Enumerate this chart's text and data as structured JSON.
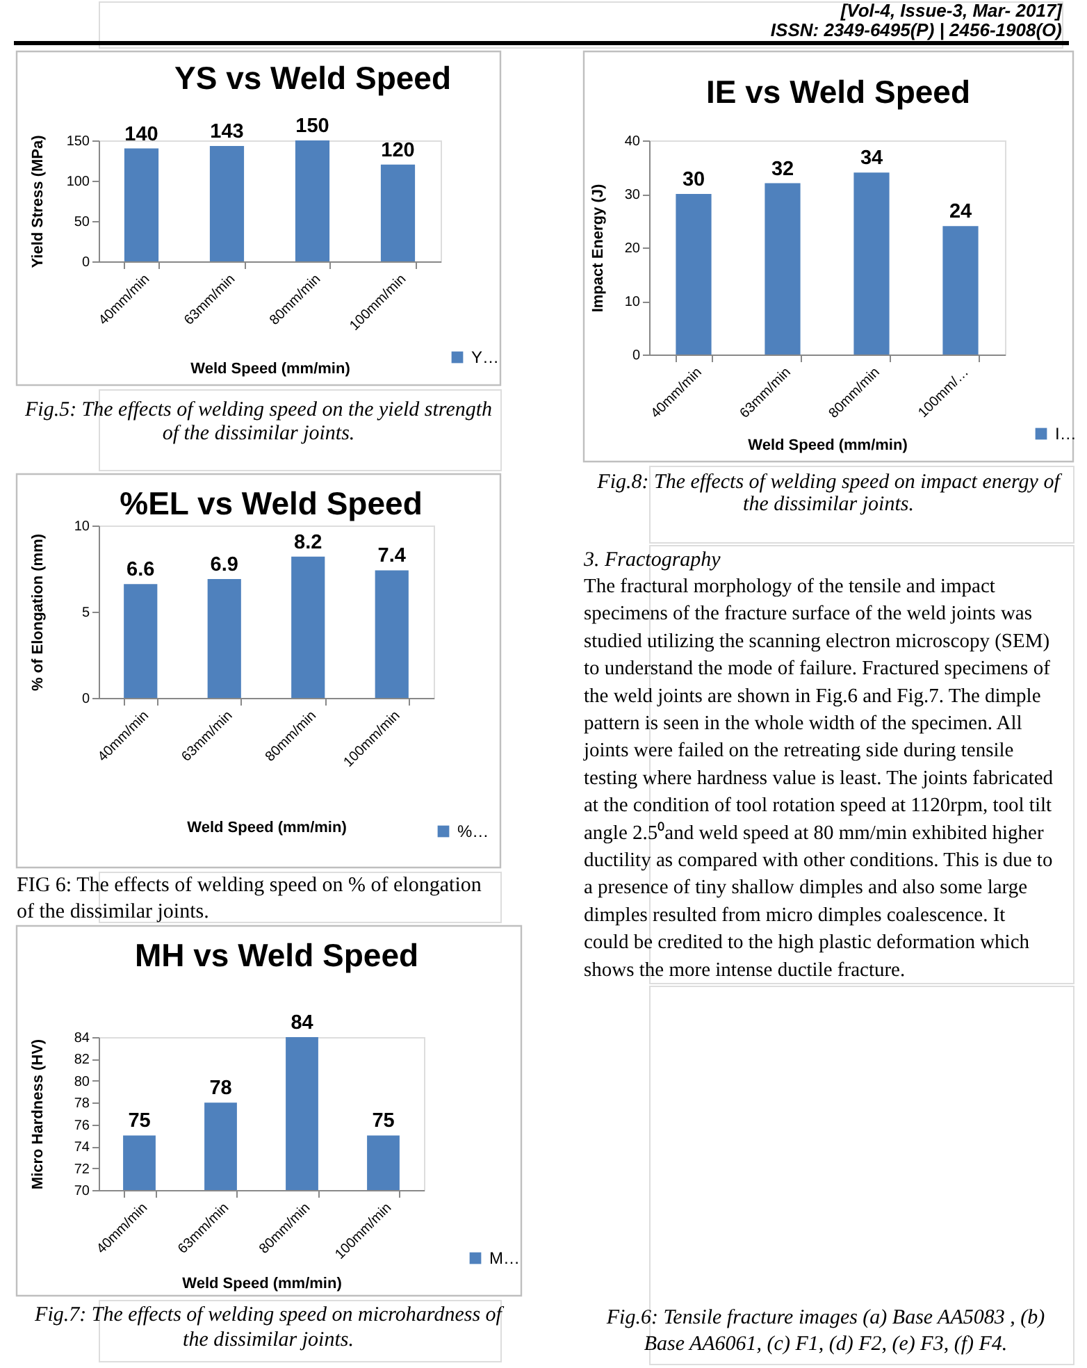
{
  "chart_data": [
    {
      "type": "other",
      "annotations": [
        "[Vol-4, Issue-3, Mar- 2017]",
        "ISSN: 2349-6495(P) | 2456-1908(O)"
      ]
    },
    {
      "type": "bar",
      "title": "YS vs Weld Speed",
      "xlabel": "Weld Speed (mm/min)",
      "ylabel": "Yield Stress (MPa)",
      "categories": [
        "40mm/min",
        "63mm/min",
        "80mm/min",
        "100mm/min"
      ],
      "series": [
        {
          "name": "Y…",
          "color": "#4f81bd",
          "values": [
            140,
            143,
            150,
            120
          ]
        }
      ],
      "ylim": [
        0,
        150
      ],
      "yticks": [
        0,
        50,
        100,
        150
      ],
      "data_labels": true,
      "legend": "bottom right",
      "annotations": [
        "Fig.5: The effects of welding speed on the yield strength",
        "of the dissimilar joints."
      ]
    },
    {
      "type": "bar",
      "title": "%EL vs Weld Speed",
      "xlabel": "Weld Speed (mm/min)",
      "ylabel": "% of Elongation (mm)",
      "categories": [
        "40mm/min",
        "63mm/min",
        "80mm/min",
        "100mm/min"
      ],
      "series": [
        {
          "name": "%…",
          "color": "#4f81bd",
          "values": [
            6.6,
            6.9,
            8.2,
            7.4
          ]
        }
      ],
      "ylim": [
        0,
        10
      ],
      "yticks": [
        0,
        5,
        10
      ],
      "data_labels": true,
      "legend": "bottom right",
      "annotations": [
        "FIG 6: The effects of welding speed on % of elongation",
        "of the dissimilar joints."
      ]
    },
    {
      "type": "bar",
      "title": "MH vs Weld Speed",
      "xlabel": "Weld Speed (mm/min)",
      "ylabel": "Micro Hardness (HV)",
      "categories": [
        "40mm/min",
        "63mm/min",
        "80mm/min",
        "100mm/min"
      ],
      "series": [
        {
          "name": "M…",
          "color": "#4f81bd",
          "values": [
            75,
            78,
            84,
            75
          ]
        }
      ],
      "ylim": [
        70,
        84
      ],
      "yticks": [
        70,
        72,
        74,
        76,
        78,
        80,
        82,
        84
      ],
      "data_labels": true,
      "legend": "bottom right",
      "annotations": [
        "Fig.7: The effects of welding speed on microhardness of",
        "the dissimilar joints."
      ]
    },
    {
      "type": "bar",
      "title": "IE vs Weld Speed",
      "xlabel": "Weld Speed (mm/min)",
      "ylabel": "Impact Energy (J)",
      "categories": [
        "40mm/min",
        "63mm/min",
        "80mm/min",
        "100mm/…"
      ],
      "series": [
        {
          "name": "I…",
          "color": "#4f81bd",
          "values": [
            30,
            32,
            34,
            24
          ]
        }
      ],
      "ylim": [
        0,
        40
      ],
      "yticks": [
        0,
        10,
        20,
        30,
        40
      ],
      "data_labels": true,
      "legend": "bottom right",
      "annotations": [
        "Fig.8: The effects of welding speed on impact energy of",
        "the dissimilar joints."
      ]
    },
    {
      "type": "other",
      "title": "3. Fractography",
      "annotations": [
        "The fractural morphology of the tensile and impact",
        "specimens of the fracture surface of the weld joints was",
        "studied utilizing the scanning electron microscopy (SEM)",
        "to understand the mode of failure. Fractured specimens of",
        "the weld joints are shown in Fig.6 and Fig.7. The dimple",
        "pattern is seen in the whole width of the specimen. All",
        "joints were failed on the retreating side during tensile",
        "testing where hardness value is least. The joints fabricated",
        "at the condition of tool rotation speed at 1120rpm, tool tilt",
        "angle 2.5⁰and weld speed at 80 mm/min exhibited higher",
        "ductility as compared with other conditions. This is due to",
        "a presence of tiny shallow dimples and also some large",
        "dimples resulted from micro dimples coalescence. It",
        "could be credited to the high plastic deformation which",
        "shows the more intense ductile fracture."
      ]
    },
    {
      "type": "other",
      "annotations": [
        "Fig.6: Tensile fracture images (a) Base AA5083 , (b)",
        "Base AA6061, (c) F1, (d) F2, (e) F3, (f) F4."
      ]
    }
  ]
}
